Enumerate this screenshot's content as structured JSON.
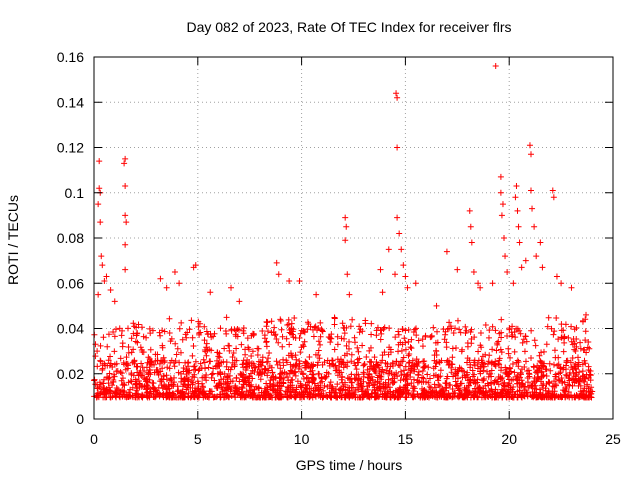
{
  "chart_data": {
    "type": "scatter",
    "title": "Day 082 of 2023, Rate Of TEC Index for receiver flrs",
    "xlabel": "GPS time / hours",
    "ylabel": "ROTI / TECUs",
    "xlim": [
      0,
      25
    ],
    "ylim": [
      0,
      0.16
    ],
    "x_ticks": [
      0,
      5,
      10,
      15,
      20,
      25
    ],
    "y_ticks": [
      0,
      0.02,
      0.04,
      0.06,
      0.08,
      0.1,
      0.12,
      0.14,
      0.16
    ],
    "x_tick_labels": [
      "0",
      "5",
      "10",
      "15",
      "20",
      "25"
    ],
    "y_tick_labels": [
      "0",
      "0.02",
      "0.04",
      "0.06",
      "0.08",
      "0.1",
      "0.12",
      "0.14",
      "0.16"
    ],
    "grid": true,
    "marker": "+",
    "color": "#ff0000",
    "series": [
      {
        "name": "ROTI",
        "description": "dense band of ROTI samples, mostly 0.005-0.035 TECU/min, across 0-24 h",
        "x_range": [
          0,
          24
        ],
        "band": [
          0.005,
          0.035
        ],
        "outliers": [
          {
            "x": 0.15,
            "y": 0.03
          },
          {
            "x": 0.2,
            "y": 0.055
          },
          {
            "x": 0.2,
            "y": 0.095
          },
          {
            "x": 0.25,
            "y": 0.102
          },
          {
            "x": 0.25,
            "y": 0.114
          },
          {
            "x": 0.3,
            "y": 0.1
          },
          {
            "x": 0.3,
            "y": 0.087
          },
          {
            "x": 0.35,
            "y": 0.072
          },
          {
            "x": 0.4,
            "y": 0.068
          },
          {
            "x": 0.5,
            "y": 0.061
          },
          {
            "x": 0.6,
            "y": 0.063
          },
          {
            "x": 0.8,
            "y": 0.057
          },
          {
            "x": 1.0,
            "y": 0.052
          },
          {
            "x": 1.45,
            "y": 0.113
          },
          {
            "x": 1.5,
            "y": 0.115
          },
          {
            "x": 1.5,
            "y": 0.103
          },
          {
            "x": 1.5,
            "y": 0.09
          },
          {
            "x": 1.55,
            "y": 0.087
          },
          {
            "x": 1.5,
            "y": 0.077
          },
          {
            "x": 1.5,
            "y": 0.066
          },
          {
            "x": 3.2,
            "y": 0.062
          },
          {
            "x": 3.5,
            "y": 0.058
          },
          {
            "x": 3.9,
            "y": 0.065
          },
          {
            "x": 4.1,
            "y": 0.06
          },
          {
            "x": 4.8,
            "y": 0.067
          },
          {
            "x": 4.9,
            "y": 0.068
          },
          {
            "x": 5.6,
            "y": 0.056
          },
          {
            "x": 6.6,
            "y": 0.058
          },
          {
            "x": 7.0,
            "y": 0.052
          },
          {
            "x": 8.8,
            "y": 0.069
          },
          {
            "x": 8.9,
            "y": 0.064
          },
          {
            "x": 9.4,
            "y": 0.061
          },
          {
            "x": 9.9,
            "y": 0.061
          },
          {
            "x": 10.7,
            "y": 0.055
          },
          {
            "x": 12.1,
            "y": 0.089
          },
          {
            "x": 12.15,
            "y": 0.085
          },
          {
            "x": 12.1,
            "y": 0.079
          },
          {
            "x": 12.2,
            "y": 0.064
          },
          {
            "x": 12.3,
            "y": 0.055
          },
          {
            "x": 13.8,
            "y": 0.066
          },
          {
            "x": 13.9,
            "y": 0.056
          },
          {
            "x": 14.2,
            "y": 0.075
          },
          {
            "x": 14.5,
            "y": 0.064
          },
          {
            "x": 14.55,
            "y": 0.144
          },
          {
            "x": 14.6,
            "y": 0.142
          },
          {
            "x": 14.6,
            "y": 0.12
          },
          {
            "x": 14.6,
            "y": 0.089
          },
          {
            "x": 14.7,
            "y": 0.082
          },
          {
            "x": 14.8,
            "y": 0.075
          },
          {
            "x": 14.9,
            "y": 0.068
          },
          {
            "x": 15.0,
            "y": 0.063
          },
          {
            "x": 15.1,
            "y": 0.058
          },
          {
            "x": 15.5,
            "y": 0.06
          },
          {
            "x": 16.5,
            "y": 0.05
          },
          {
            "x": 17.0,
            "y": 0.074
          },
          {
            "x": 17.5,
            "y": 0.066
          },
          {
            "x": 18.1,
            "y": 0.092
          },
          {
            "x": 18.15,
            "y": 0.085
          },
          {
            "x": 18.2,
            "y": 0.078
          },
          {
            "x": 18.3,
            "y": 0.065
          },
          {
            "x": 18.5,
            "y": 0.06
          },
          {
            "x": 18.6,
            "y": 0.058
          },
          {
            "x": 19.2,
            "y": 0.06
          },
          {
            "x": 19.35,
            "y": 0.156
          },
          {
            "x": 19.6,
            "y": 0.107
          },
          {
            "x": 19.6,
            "y": 0.1
          },
          {
            "x": 19.7,
            "y": 0.095
          },
          {
            "x": 19.65,
            "y": 0.09
          },
          {
            "x": 19.75,
            "y": 0.08
          },
          {
            "x": 19.8,
            "y": 0.072
          },
          {
            "x": 19.9,
            "y": 0.065
          },
          {
            "x": 20.2,
            "y": 0.06
          },
          {
            "x": 20.3,
            "y": 0.098
          },
          {
            "x": 20.35,
            "y": 0.103
          },
          {
            "x": 20.4,
            "y": 0.092
          },
          {
            "x": 20.45,
            "y": 0.085
          },
          {
            "x": 20.5,
            "y": 0.078
          },
          {
            "x": 20.6,
            "y": 0.067
          },
          {
            "x": 20.8,
            "y": 0.07
          },
          {
            "x": 21.0,
            "y": 0.121
          },
          {
            "x": 21.05,
            "y": 0.117
          },
          {
            "x": 21.05,
            "y": 0.101
          },
          {
            "x": 21.1,
            "y": 0.093
          },
          {
            "x": 21.2,
            "y": 0.085
          },
          {
            "x": 21.3,
            "y": 0.072
          },
          {
            "x": 21.5,
            "y": 0.078
          },
          {
            "x": 21.6,
            "y": 0.067
          },
          {
            "x": 22.1,
            "y": 0.101
          },
          {
            "x": 22.15,
            "y": 0.098
          },
          {
            "x": 22.3,
            "y": 0.063
          },
          {
            "x": 22.5,
            "y": 0.06
          },
          {
            "x": 23.0,
            "y": 0.058
          },
          {
            "x": 23.7,
            "y": 0.046
          }
        ]
      }
    ]
  }
}
